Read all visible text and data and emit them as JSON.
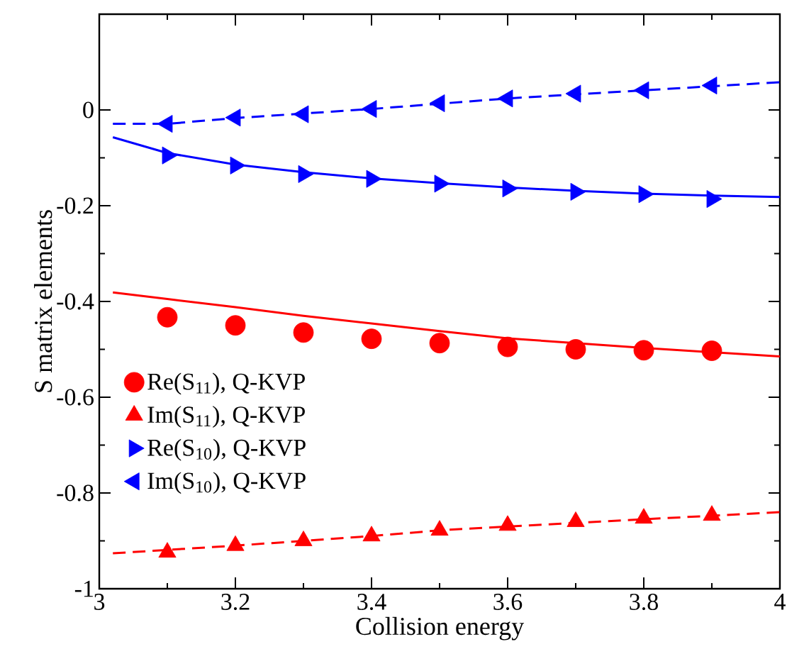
{
  "chart_data": {
    "type": "scatter",
    "xlabel": "Collision energy",
    "ylabel": "S matrix elements",
    "xlim": [
      3,
      4
    ],
    "xticks": [
      3,
      3.2,
      3.4,
      3.6,
      3.8,
      4
    ],
    "ylim": [
      -1,
      0.2
    ],
    "yticks": [
      -1,
      -0.8,
      -0.6,
      -0.4,
      -0.2,
      0
    ],
    "legend": "bottom left",
    "grid": false,
    "series": [
      {
        "name": "Re(S$_{11}$), Q-KVP",
        "marker": "circle",
        "color": "#ff0000",
        "x": [
          3.1,
          3.2,
          3.3,
          3.4,
          3.5,
          3.6,
          3.7,
          3.8,
          3.9
        ],
        "values": [
          -0.433,
          -0.45,
          -0.465,
          -0.478,
          -0.487,
          -0.495,
          -0.5,
          -0.502,
          -0.503
        ]
      },
      {
        "name": "Im(S$_{11}$), Q-KVP",
        "marker": "triangle",
        "color": "#ff0000",
        "x": [
          3.1,
          3.2,
          3.3,
          3.4,
          3.5,
          3.6,
          3.7,
          3.8,
          3.9
        ],
        "values": [
          -0.924,
          -0.91,
          -0.9,
          -0.89,
          -0.878,
          -0.868,
          -0.86,
          -0.853,
          -0.847
        ]
      },
      {
        "name": "Re(S$_{10}$), Q-KVP",
        "marker": "triangle right",
        "color": "#0000ff",
        "x": [
          3.1,
          3.2,
          3.3,
          3.4,
          3.5,
          3.6,
          3.7,
          3.8,
          3.9
        ],
        "values": [
          -0.095,
          -0.116,
          -0.134,
          -0.144,
          -0.154,
          -0.164,
          -0.171,
          -0.176,
          -0.186
        ]
      },
      {
        "name": "Im(S$_{10}$), Q-KVP",
        "marker": "triangle left",
        "color": "#0000ff",
        "x": [
          3.1,
          3.2,
          3.3,
          3.4,
          3.5,
          3.6,
          3.7,
          3.8,
          3.9
        ],
        "values": [
          -0.029,
          -0.016,
          -0.009,
          0.002,
          0.014,
          0.024,
          0.034,
          0.041,
          0.051
        ]
      },
      {
        "type": "line",
        "line_style": "solid",
        "color": "#ff0000",
        "x": [
          3.02,
          3.1,
          3.2,
          3.3,
          3.4,
          3.5,
          3.6,
          3.7,
          3.8,
          3.9,
          4
        ],
        "values": [
          -0.381,
          -0.395,
          -0.412,
          -0.43,
          -0.446,
          -0.462,
          -0.477,
          -0.487,
          -0.497,
          -0.506,
          -0.515
        ]
      },
      {
        "type": "line",
        "line_style": "dashed",
        "color": "#ff0000",
        "x": [
          3.02,
          3.2,
          3.4,
          3.5,
          3.6,
          3.8,
          4
        ],
        "values": [
          -0.926,
          -0.91,
          -0.89,
          -0.878,
          -0.87,
          -0.855,
          -0.84
        ]
      },
      {
        "type": "line",
        "line_style": "solid",
        "color": "#0000ff",
        "x": [
          3.02,
          3.1,
          3.2,
          3.3,
          3.4,
          3.5,
          3.6,
          3.7,
          3.8,
          3.9,
          4
        ],
        "values": [
          -0.057,
          -0.09,
          -0.114,
          -0.13,
          -0.143,
          -0.153,
          -0.162,
          -0.169,
          -0.175,
          -0.179,
          -0.182
        ]
      },
      {
        "type": "line",
        "line_style": "dashed",
        "color": "#0000ff",
        "x": [
          3.02,
          3.1,
          3.2,
          3.4,
          3.6,
          3.8,
          4
        ],
        "values": [
          -0.029,
          -0.029,
          -0.017,
          0.002,
          0.024,
          0.041,
          0.058
        ]
      }
    ]
  }
}
